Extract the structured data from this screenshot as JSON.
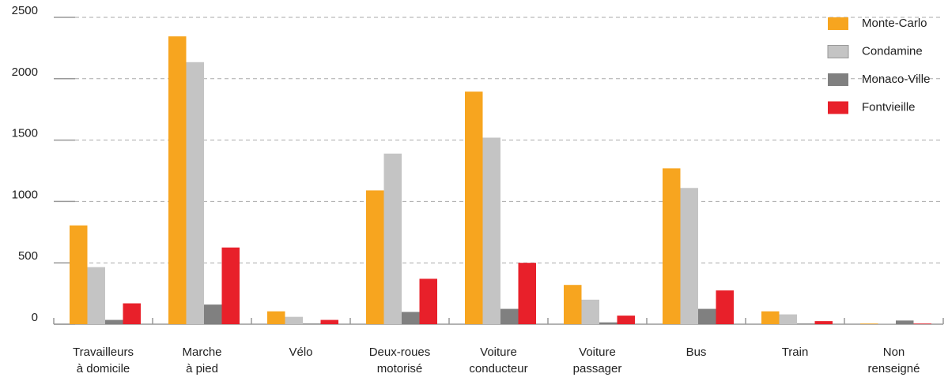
{
  "chart_data": {
    "type": "bar",
    "categories": [
      "Travailleurs\nà domicile",
      "Marche\nà pied",
      "Vélo",
      "Deux-roues\nmotorisé",
      "Voiture\nconducteur",
      "Voiture\npassager",
      "Bus",
      "Train",
      "Non\nrenseigné"
    ],
    "series": [
      {
        "name": "Monte-Carlo",
        "color": "#f7a51f",
        "values": [
          805,
          2345,
          105,
          1090,
          1895,
          320,
          1270,
          105,
          5
        ]
      },
      {
        "name": "Condamine",
        "color": "#c4c4c4",
        "values": [
          465,
          2135,
          60,
          1390,
          1520,
          200,
          1110,
          80,
          5
        ]
      },
      {
        "name": "Monaco-Ville",
        "color": "#808080",
        "values": [
          35,
          160,
          5,
          100,
          125,
          15,
          125,
          5,
          30
        ]
      },
      {
        "name": "Fontvieille",
        "color": "#e8202a",
        "values": [
          170,
          625,
          35,
          370,
          500,
          70,
          275,
          25,
          5
        ]
      }
    ],
    "ylim": [
      0,
      2500
    ],
    "yticks": [
      0,
      500,
      1000,
      1500,
      2000,
      2500
    ],
    "grid": true,
    "legend": "top-right"
  }
}
